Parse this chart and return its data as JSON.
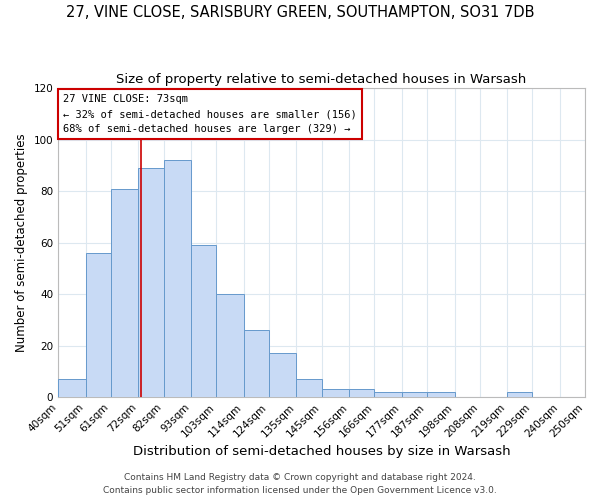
{
  "title1": "27, VINE CLOSE, SARISBURY GREEN, SOUTHAMPTON, SO31 7DB",
  "title2": "Size of property relative to semi-detached houses in Warsash",
  "xlabel": "Distribution of semi-detached houses by size in Warsash",
  "ylabel": "Number of semi-detached properties",
  "bin_edges": [
    40,
    51,
    61,
    72,
    82,
    93,
    103,
    114,
    124,
    135,
    145,
    156,
    166,
    177,
    187,
    198,
    208,
    219,
    229,
    240,
    250
  ],
  "counts": [
    7,
    56,
    81,
    89,
    92,
    59,
    40,
    26,
    17,
    7,
    3,
    3,
    2,
    2,
    2,
    0,
    0,
    2,
    0,
    0
  ],
  "bar_color": "#c8daf5",
  "bar_edge_color": "#6699cc",
  "vline_x": 73,
  "vline_color": "#cc0000",
  "annotation_title": "27 VINE CLOSE: 73sqm",
  "annotation_line1": "← 32% of semi-detached houses are smaller (156)",
  "annotation_line2": "68% of semi-detached houses are larger (329) →",
  "annotation_box_color": "#ffffff",
  "annotation_box_edge": "#cc0000",
  "tick_labels": [
    "40sqm",
    "51sqm",
    "61sqm",
    "72sqm",
    "82sqm",
    "93sqm",
    "103sqm",
    "114sqm",
    "124sqm",
    "135sqm",
    "145sqm",
    "156sqm",
    "166sqm",
    "177sqm",
    "187sqm",
    "198sqm",
    "208sqm",
    "219sqm",
    "229sqm",
    "240sqm",
    "250sqm"
  ],
  "ylim": [
    0,
    120
  ],
  "yticks": [
    0,
    20,
    40,
    60,
    80,
    100,
    120
  ],
  "footer1": "Contains HM Land Registry data © Crown copyright and database right 2024.",
  "footer2": "Contains public sector information licensed under the Open Government Licence v3.0.",
  "grid_color": "#dde8f0",
  "title1_fontsize": 10.5,
  "title2_fontsize": 9.5,
  "xlabel_fontsize": 9.5,
  "ylabel_fontsize": 8.5,
  "tick_fontsize": 7.5,
  "footer_fontsize": 6.5
}
